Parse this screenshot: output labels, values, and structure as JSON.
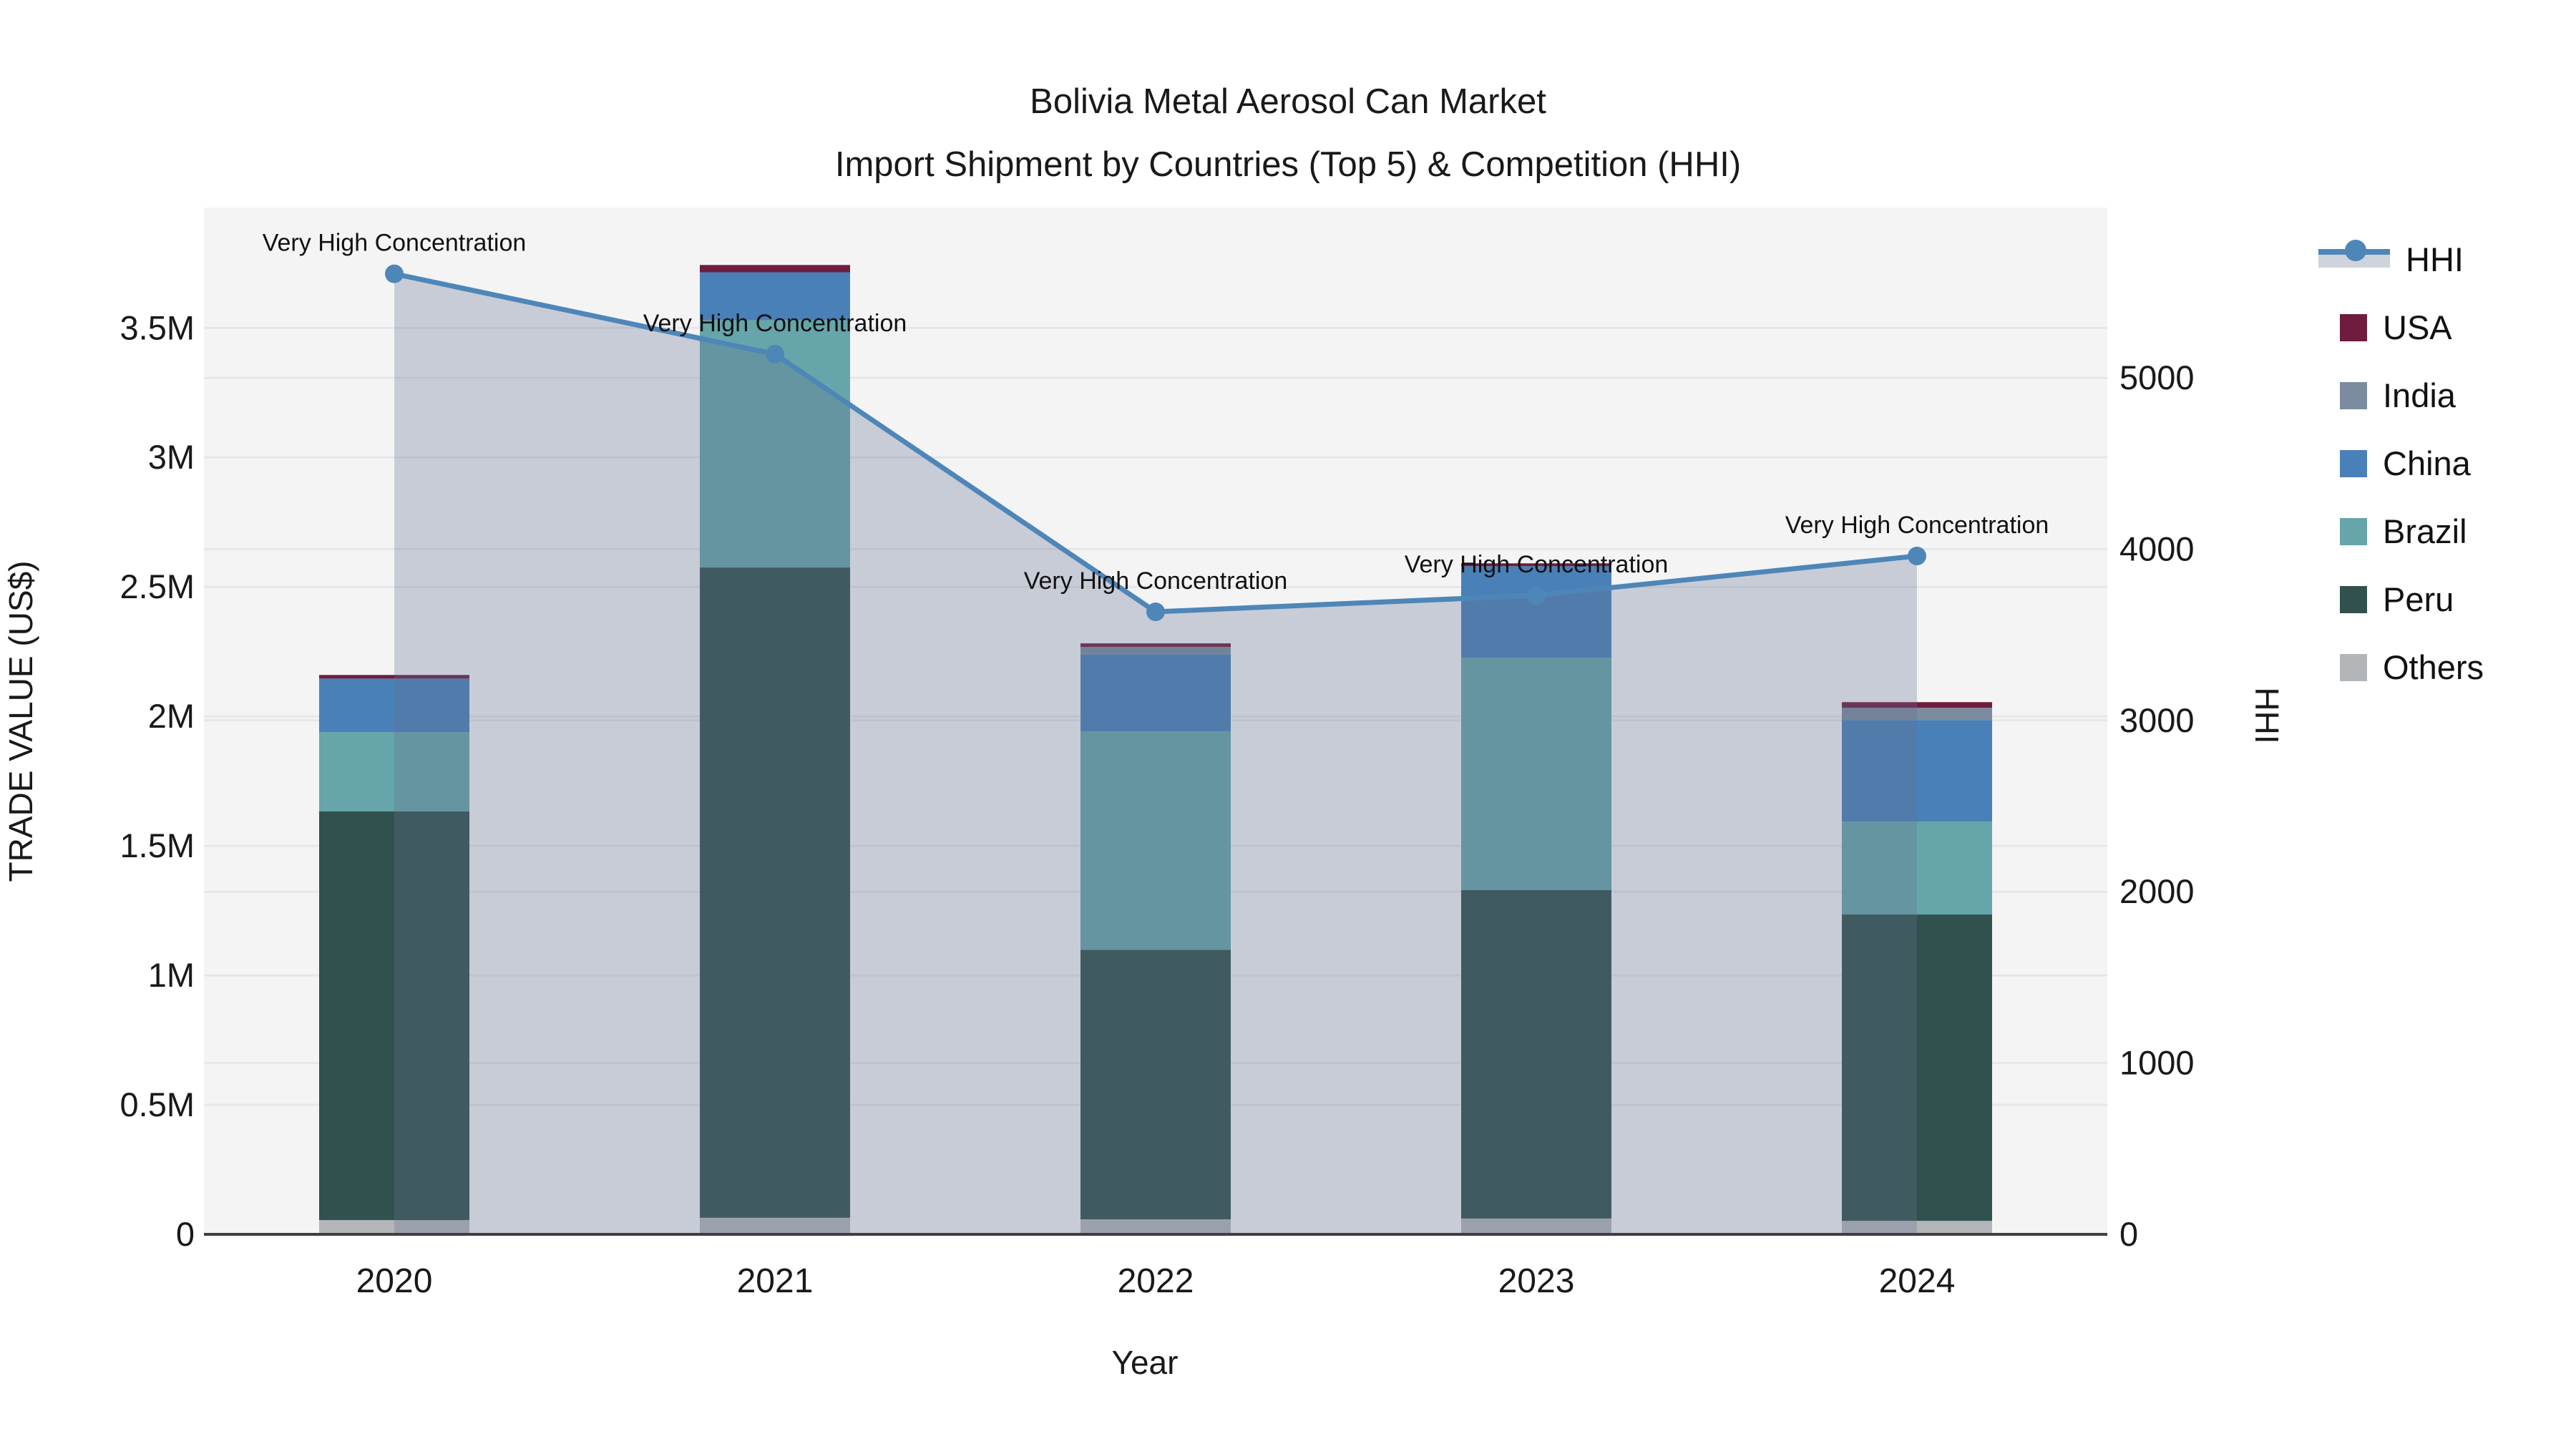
{
  "header": {
    "title": "Bolivia Metal Aerosol Can Market",
    "subtitle": "Import Shipment by Countries (Top 5) & Competition (HHI)"
  },
  "chart_data": {
    "type": "bar+line",
    "title": "Bolivia Metal Aerosol Can Market",
    "subtitle": "Import Shipment by Countries (Top 5) & Competition (HHI)",
    "xlabel": "Year",
    "ylabel_left": "TRADE VALUE (US$)",
    "ylabel_right": "HHI",
    "categories": [
      "2020",
      "2021",
      "2022",
      "2023",
      "2024"
    ],
    "units_left": "million US$",
    "bar_series_bottom_to_top": [
      {
        "name": "Others",
        "color": "#b3b6b9",
        "values": [
          0.055,
          0.064,
          0.058,
          0.061,
          0.052
        ]
      },
      {
        "name": "Peru",
        "color": "#31514f",
        "values": [
          1.578,
          2.511,
          1.041,
          1.268,
          1.183
        ]
      },
      {
        "name": "Brazil",
        "color": "#66a5aa",
        "values": [
          0.306,
          0.955,
          0.843,
          0.898,
          0.359
        ]
      },
      {
        "name": "China",
        "color": "#4a80b8",
        "values": [
          0.207,
          0.185,
          0.298,
          0.353,
          0.392
        ]
      },
      {
        "name": "India",
        "color": "#7c8ca0",
        "values": [
          0,
          0,
          0.028,
          0,
          0.047
        ]
      },
      {
        "name": "USA",
        "color": "#6e1d3f",
        "values": [
          0.014,
          0.028,
          0.014,
          0.011,
          0.022
        ]
      }
    ],
    "line_series": {
      "name": "HHI",
      "color": "#4e86b8",
      "area_fill": "rgba(101,114,142,0.30)",
      "values": [
        5607,
        5138,
        3634,
        3730,
        3960
      ]
    },
    "annotation_text": "Very High Concentration",
    "annotations_per_point": [
      "Very High Concentration",
      "Very High Concentration",
      "Very High Concentration",
      "Very High Concentration",
      "Very High Concentration"
    ],
    "axes": {
      "left": {
        "range": [
          0,
          3.965
        ],
        "ticks": [
          0,
          0.5,
          1,
          1.5,
          2,
          2.5,
          3,
          3.5
        ],
        "tick_labels": [
          "0",
          "0.5M",
          "1M",
          "1.5M",
          "2M",
          "2.5M",
          "3M",
          "3.5M"
        ],
        "grid": true
      },
      "right": {
        "range": [
          0,
          5994
        ],
        "ticks": [
          0,
          1000,
          2000,
          3000,
          4000,
          5000
        ],
        "tick_labels": [
          "0",
          "1000",
          "2000",
          "3000",
          "4000",
          "5000"
        ],
        "grid": true
      }
    },
    "legend_order": [
      "HHI",
      "USA",
      "India",
      "China",
      "Brazil",
      "Peru",
      "Others"
    ],
    "legend_position": "right"
  }
}
